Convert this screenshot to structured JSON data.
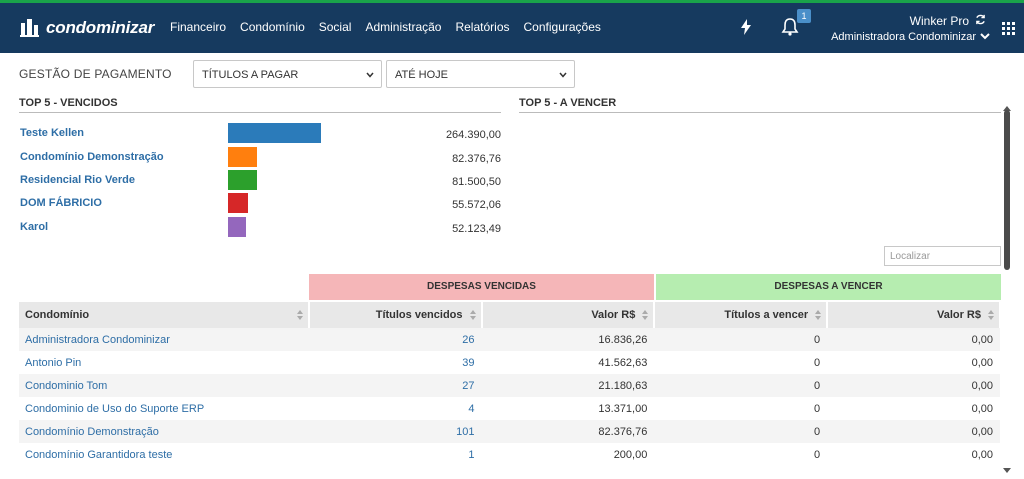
{
  "brand": {
    "name": "condominizar",
    "nav_bg": "#163a5f",
    "accent": "#1aa34a"
  },
  "nav": {
    "items": [
      "Financeiro",
      "Condomínio",
      "Social",
      "Administração",
      "Relatórios",
      "Configurações"
    ]
  },
  "header": {
    "notifications_count": "1",
    "user_name": "Winker Pro",
    "org_name": "Administradora Condominizar",
    "icons": [
      "bolt-icon",
      "bell-icon",
      "refresh-icon",
      "chevron-down-icon",
      "apps-grid-icon"
    ]
  },
  "filters": {
    "label": "GESTÃO DE PAGAMENTO",
    "type_value": "TÍTULOS A PAGAR",
    "period_value": "ATÉ HOJE"
  },
  "top5_vencidos": {
    "title": "TOP 5 - VENCIDOS",
    "items": [
      {
        "name": "Teste Kellen",
        "value": "264.390,00",
        "amount": 264390.0,
        "color": "#2b7bba"
      },
      {
        "name": "Condomínio Demonstração",
        "value": "82.376,76",
        "amount": 82376.76,
        "color": "#ff7f0e"
      },
      {
        "name": "Residencial Rio Verde",
        "value": "81.500,50",
        "amount": 81500.5,
        "color": "#2ca02c"
      },
      {
        "name": "DOM FÁBRICIO",
        "value": "55.572,06",
        "amount": 55572.06,
        "color": "#d62728"
      },
      {
        "name": "Karol",
        "value": "52.123,49",
        "amount": 52123.49,
        "color": "#9467bd"
      }
    ]
  },
  "top5_a_vencer": {
    "title": "TOP 5 - A VENCER"
  },
  "search": {
    "placeholder": "Localizar"
  },
  "table": {
    "group_vencidas": "DESPESAS VENCIDAS",
    "group_a_vencer": "DESPESAS A VENCER",
    "columns": [
      "Condomínio",
      "Títulos vencidos",
      "Valor R$",
      "Títulos a vencer",
      "Valor R$"
    ],
    "rows": [
      [
        "Administradora Condominizar",
        "26",
        "16.836,26",
        "0",
        "0,00"
      ],
      [
        "Antonio Pin",
        "39",
        "41.562,63",
        "0",
        "0,00"
      ],
      [
        "Condominio Tom",
        "27",
        "21.180,63",
        "0",
        "0,00"
      ],
      [
        "Condominio de Uso do Suporte ERP",
        "4",
        "13.371,00",
        "0",
        "0,00"
      ],
      [
        "Condomínio Demonstração",
        "101",
        "82.376,76",
        "0",
        "0,00"
      ],
      [
        "Condomínio Garantidora teste",
        "1",
        "200,00",
        "0",
        "0,00"
      ]
    ]
  }
}
